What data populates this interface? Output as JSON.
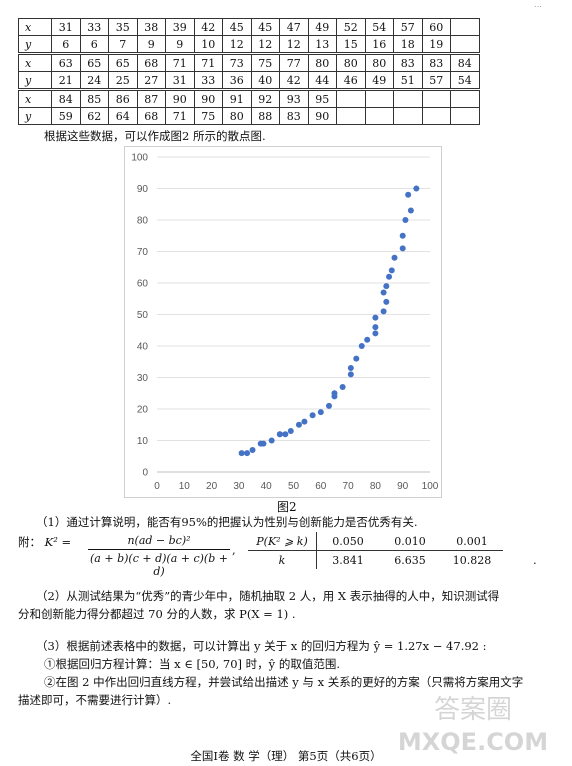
{
  "header": {
    "text": "…"
  },
  "table": {
    "blocks": [
      {
        "x": [
          "31",
          "33",
          "35",
          "38",
          "39",
          "42",
          "45",
          "45",
          "47",
          "49",
          "52",
          "54",
          "57",
          "60"
        ],
        "y": [
          "6",
          "6",
          "7",
          "9",
          "9",
          "10",
          "12",
          "12",
          "12",
          "13",
          "15",
          "16",
          "18",
          "19"
        ]
      },
      {
        "x": [
          "63",
          "65",
          "65",
          "68",
          "71",
          "71",
          "73",
          "75",
          "77",
          "80",
          "80",
          "80",
          "83",
          "83",
          "84"
        ],
        "y": [
          "21",
          "24",
          "25",
          "27",
          "31",
          "33",
          "36",
          "40",
          "42",
          "44",
          "46",
          "49",
          "51",
          "57",
          "54"
        ]
      },
      {
        "x": [
          "84",
          "85",
          "86",
          "87",
          "90",
          "90",
          "91",
          "92",
          "93",
          "95"
        ],
        "y": [
          "59",
          "62",
          "64",
          "68",
          "71",
          "75",
          "80",
          "88",
          "83",
          "90"
        ]
      }
    ],
    "row_label_x": "x",
    "row_label_y": "y"
  },
  "text": {
    "intro": "根据这些数据，可以作成图2 所示的散点图.",
    "fig_caption": "图2",
    "q1": "（1）通过计算说明，能否有95%的把握认为性别与创新能力是否优秀有关.",
    "attach_prefix": "附：",
    "k2_label": "K² =",
    "frac_num": "n(ad − bc)²",
    "frac_den": "(a + b)(c + d)(a + c)(b + d)",
    "frac_tail": ",",
    "ptab_h1": "P(K² ⩾ k)",
    "ptab_h2": "k",
    "ptab_p": [
      "0.050",
      "0.010",
      "0.001"
    ],
    "ptab_k": [
      "3.841",
      "6.635",
      "10.828"
    ],
    "ptab_tail": ".",
    "q2_line1": "（2）从测试结果为“优秀”的青少年中，随机抽取 2 人，用 X 表示抽得的人中，知识测试得",
    "q2_line2": "分和创新能力得分都超过 70 分的人数，求 P(X = 1) .",
    "q3": "（3）根据前述表格中的数据，可以计算出 y 关于 x 的回归方程为 ŷ = 1.27x − 47.92 :",
    "q3_sub1": "①根据回归方程计算：当 x ∈ [50, 70] 时，ŷ 的取值范围.",
    "q3_sub2_line1": "②在图 2 中作出回归直线方程，并尝试给出描述 y 与 x 关系的更好的方案（只需将方案用文字",
    "q3_sub2_line2": "描述即可，不需要进行计算）.",
    "footer": "全国Ⅰ卷 数  学（理） 第5页（共6页）",
    "watermark_top": "答案圈",
    "watermark_bottom": "MXQE.COM"
  },
  "chart_data": {
    "type": "scatter",
    "title": "",
    "xlabel": "",
    "ylabel": "",
    "xlim": [
      0,
      100
    ],
    "ylim": [
      0,
      100
    ],
    "xticks": [
      0,
      10,
      20,
      30,
      40,
      50,
      60,
      70,
      80,
      90,
      100
    ],
    "yticks": [
      0,
      10,
      20,
      30,
      40,
      50,
      60,
      70,
      80,
      90,
      100
    ],
    "grid": "horizontal",
    "point_color": "#4472c4",
    "series": [
      {
        "x": [
          31,
          33,
          35,
          38,
          39,
          42,
          45,
          45,
          47,
          49,
          52,
          54,
          57,
          60,
          63,
          65,
          65,
          68,
          71,
          71,
          73,
          75,
          77,
          80,
          80,
          80,
          83,
          83,
          84,
          84,
          85,
          86,
          87,
          90,
          90,
          91,
          92,
          93,
          95
        ],
        "y": [
          6,
          6,
          7,
          9,
          9,
          10,
          12,
          12,
          12,
          13,
          15,
          16,
          18,
          19,
          21,
          24,
          25,
          27,
          31,
          33,
          36,
          40,
          42,
          44,
          46,
          49,
          51,
          57,
          54,
          59,
          62,
          64,
          68,
          71,
          75,
          80,
          88,
          83,
          90
        ]
      }
    ]
  }
}
